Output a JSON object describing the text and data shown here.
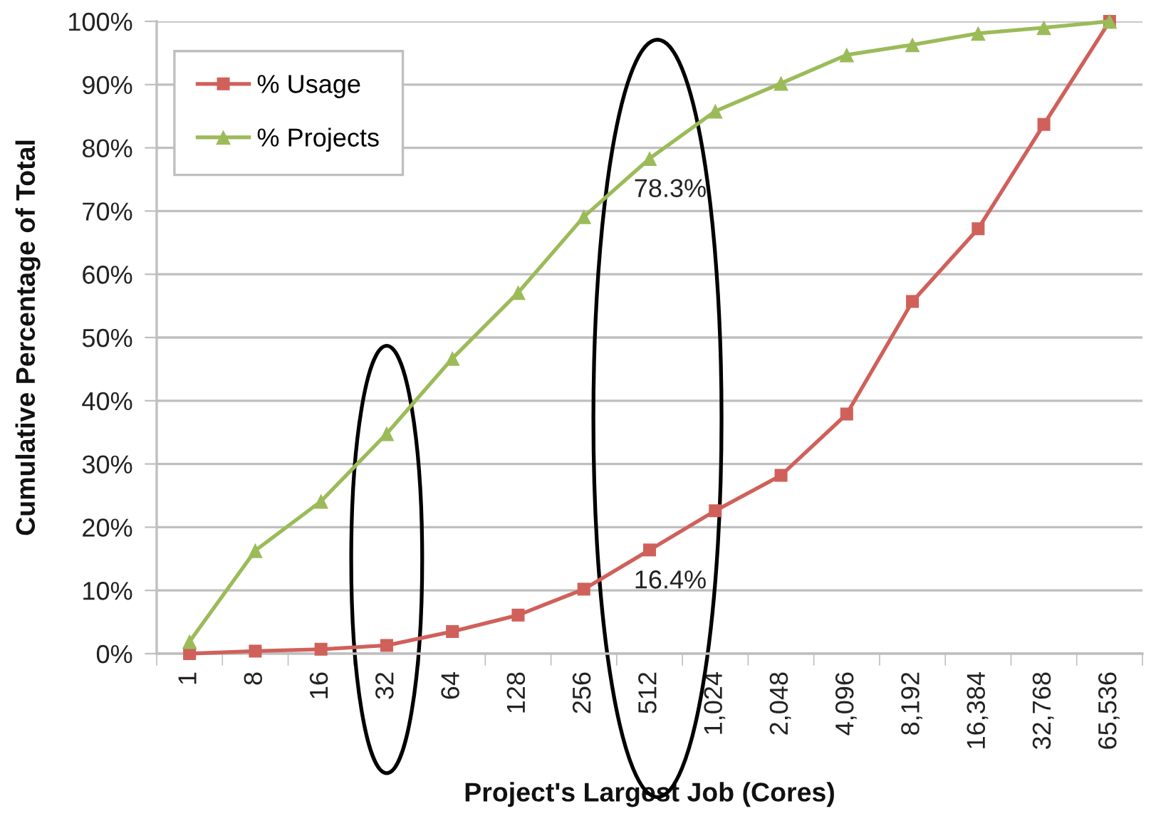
{
  "chart_data": {
    "type": "line",
    "xlabel": "Project's Largest Job (Cores)",
    "ylabel": "Cumulative Percentage of Total",
    "categories": [
      "1",
      "8",
      "16",
      "32",
      "64",
      "128",
      "256",
      "512",
      "1,024",
      "2,048",
      "4,096",
      "8,192",
      "16,384",
      "32,768",
      "65,536"
    ],
    "series": [
      {
        "name": "% Usage",
        "color": "#d0605a",
        "marker": "square",
        "values": [
          0,
          0.4,
          0.7,
          1.3,
          3.5,
          6.1,
          10.2,
          16.4,
          22.6,
          28.2,
          37.9,
          55.7,
          67.2,
          83.7,
          100
        ],
        "value_labels": [
          null,
          null,
          null,
          null,
          null,
          null,
          null,
          "16.4%",
          null,
          null,
          null,
          null,
          null,
          null,
          null
        ]
      },
      {
        "name": "% Projects",
        "color": "#9bbb59",
        "marker": "triangle",
        "values": [
          1.9,
          16.3,
          24.1,
          34.8,
          46.7,
          57.1,
          69.1,
          78.3,
          85.8,
          90.2,
          94.7,
          96.3,
          98.1,
          99.0,
          100
        ],
        "value_labels": [
          null,
          null,
          null,
          null,
          null,
          null,
          null,
          "78.3%",
          null,
          null,
          null,
          null,
          null,
          null,
          null
        ]
      }
    ],
    "ylim": [
      0,
      100
    ],
    "yticks": [
      {
        "value": 0,
        "label": "0%"
      },
      {
        "value": 10,
        "label": "10%"
      },
      {
        "value": 20,
        "label": "20%"
      },
      {
        "value": 30,
        "label": "30%"
      },
      {
        "value": 40,
        "label": "40%"
      },
      {
        "value": 50,
        "label": "50%"
      },
      {
        "value": 60,
        "label": "60%"
      },
      {
        "value": 70,
        "label": "70%"
      },
      {
        "value": 80,
        "label": "80%"
      },
      {
        "value": 90,
        "label": "90%"
      },
      {
        "value": 100,
        "label": "100%"
      }
    ],
    "grid": "y",
    "legend": "top left",
    "line_style": "solid"
  }
}
